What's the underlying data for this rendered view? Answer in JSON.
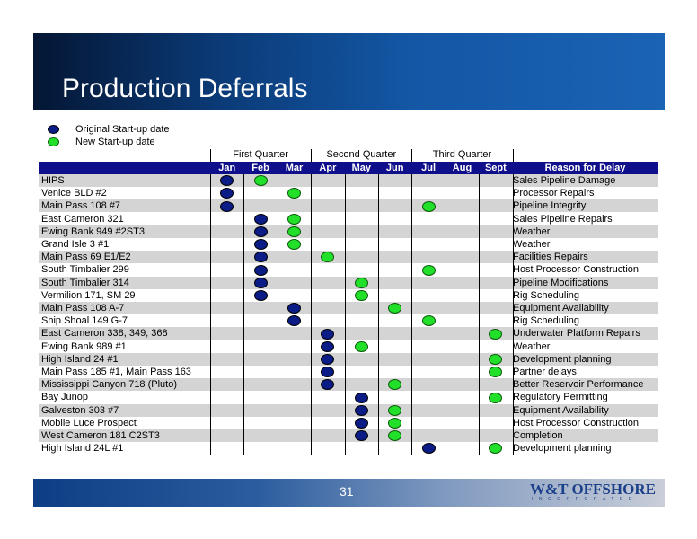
{
  "slide": {
    "title": "Production Deferrals",
    "page_number": "31"
  },
  "legend": {
    "original_label": "Original Start-up date",
    "new_label": "New Start-up date"
  },
  "colors": {
    "original": "#0b1c86",
    "new": "#22e02a",
    "header_bar": "#0f0f8c",
    "row_shade": "#d4d4d4"
  },
  "quarters": [
    "First Quarter",
    "Second Quarter",
    "Third Quarter"
  ],
  "months": [
    "Jan",
    "Feb",
    "Mar",
    "Apr",
    "May",
    "Jun",
    "Jul",
    "Aug",
    "Sept"
  ],
  "reason_header": "Reason for Delay",
  "rows": [
    {
      "name": "HIPS",
      "original": "Jan",
      "new": "Feb",
      "reason": "Sales Pipeline Damage"
    },
    {
      "name": "Venice BLD #2",
      "original": "Jan",
      "new": "Mar",
      "reason": "Processor Repairs"
    },
    {
      "name": "Main Pass 108 #7",
      "original": "Jan",
      "new": "Jul",
      "reason": "Pipeline Integrity"
    },
    {
      "name": "East Cameron 321",
      "original": "Feb",
      "new": "Mar",
      "reason": "Sales Pipeline Repairs"
    },
    {
      "name": "Ewing Bank 949 #2ST3",
      "original": "Feb",
      "new": "Mar",
      "reason": "Weather"
    },
    {
      "name": "Grand Isle 3 #1",
      "original": "Feb",
      "new": "Mar",
      "reason": "Weather"
    },
    {
      "name": "Main Pass 69 E1/E2",
      "original": "Feb",
      "new": "Apr",
      "reason": "Facilities Repairs"
    },
    {
      "name": "South Timbalier 299",
      "original": "Feb",
      "new": "Jul",
      "reason": "Host Processor Construction"
    },
    {
      "name": "South Timbalier 314",
      "original": "Feb",
      "new": "May",
      "reason": "Pipeline Modifications"
    },
    {
      "name": "Vermilion 171, SM 29",
      "original": "Feb",
      "new": "May",
      "reason": "Rig Scheduling"
    },
    {
      "name": "Main Pass 108 A-7",
      "original": "Mar",
      "new": "Jun",
      "reason": "Equipment Availability"
    },
    {
      "name": "Ship Shoal 149 G-7",
      "original": "Mar",
      "new": "Jul",
      "reason": "Rig Scheduling"
    },
    {
      "name": "East Cameron 338, 349, 368",
      "original": "Apr",
      "new": "Sept",
      "reason": "Underwater Platform Repairs"
    },
    {
      "name": "Ewing Bank 989 #1",
      "original": "Apr",
      "new": "May",
      "reason": "Weather"
    },
    {
      "name": "High Island 24 #1",
      "original": "Apr",
      "new": "Sept",
      "reason": "Development planning"
    },
    {
      "name": "Main Pass 185 #1, Main Pass 163",
      "original": "Apr",
      "new": "Sept",
      "reason": "Partner delays"
    },
    {
      "name": "Mississippi Canyon 718 (Pluto)",
      "original": "Apr",
      "new": "Jun",
      "reason": "Better Reservoir Performance"
    },
    {
      "name": "Bay Junop",
      "original": "May",
      "new": "Sept",
      "reason": "Regulatory Permitting"
    },
    {
      "name": "Galveston 303 #7",
      "original": "May",
      "new": "Jun",
      "reason": "Equipment Availability"
    },
    {
      "name": "Mobile Luce Prospect",
      "original": "May",
      "new": "Jun",
      "reason": "Host Processor Construction"
    },
    {
      "name": "West Cameron 181 C2ST3",
      "original": "May",
      "new": "Jun",
      "reason": "Completion"
    },
    {
      "name": "High Island 24L #1",
      "original": "Jul",
      "new": "Sept",
      "reason": "Development planning"
    }
  ],
  "logo": {
    "text": "W&T OFFSHORE",
    "subtext": "INCORPORATED"
  }
}
